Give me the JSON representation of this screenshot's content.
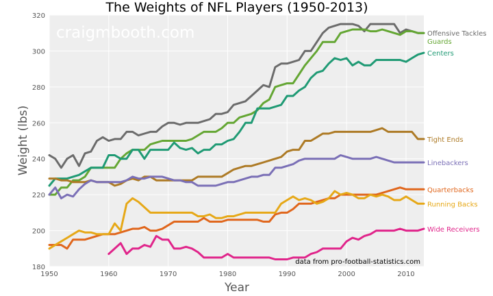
{
  "chart_data": {
    "type": "line",
    "title": "The Weights of NFL Players (1950-2013)",
    "xlabel": "Year",
    "ylabel": "Weight (lbs)",
    "xlim": [
      1950,
      2013
    ],
    "ylim": [
      180,
      320
    ],
    "xticks": [
      1950,
      1960,
      1970,
      1980,
      1990,
      2000,
      2010
    ],
    "yticks": [
      180,
      200,
      220,
      240,
      260,
      280,
      300,
      320
    ],
    "grid": true,
    "background": "#eeeeee",
    "watermark": "craigmbooth.com",
    "source_note": "data from pro-football-statistics.com",
    "series": [
      {
        "name": "Offensive Tackles",
        "color": "#6b6b6b",
        "x": [
          1950,
          1951,
          1952,
          1953,
          1954,
          1955,
          1956,
          1957,
          1958,
          1959,
          1960,
          1961,
          1962,
          1963,
          1964,
          1965,
          1966,
          1967,
          1968,
          1969,
          1970,
          1971,
          1972,
          1973,
          1974,
          1975,
          1976,
          1977,
          1978,
          1979,
          1980,
          1981,
          1982,
          1983,
          1984,
          1985,
          1986,
          1987,
          1988,
          1989,
          1990,
          1991,
          1992,
          1993,
          1994,
          1995,
          1996,
          1997,
          1998,
          1999,
          2000,
          2001,
          2002,
          2003,
          2004,
          2005,
          2006,
          2007,
          2008,
          2009,
          2010,
          2011,
          2012,
          2013
        ],
        "values": [
          242,
          240,
          235,
          240,
          242,
          236,
          243,
          244,
          250,
          252,
          250,
          251,
          251,
          255,
          255,
          253,
          254,
          255,
          255,
          258,
          260,
          260,
          259,
          260,
          260,
          260,
          261,
          262,
          265,
          265,
          266,
          270,
          271,
          272,
          275,
          278,
          281,
          280,
          291,
          293,
          293,
          294,
          295,
          300,
          300,
          305,
          310,
          313,
          314,
          315,
          315,
          315,
          314,
          311,
          315,
          315,
          315,
          315,
          315,
          310,
          312,
          311,
          310,
          310
        ]
      },
      {
        "name": "Guards",
        "color": "#64a633",
        "x": [
          1950,
          1951,
          1952,
          1953,
          1954,
          1955,
          1956,
          1957,
          1958,
          1959,
          1960,
          1961,
          1962,
          1963,
          1964,
          1965,
          1966,
          1967,
          1968,
          1969,
          1970,
          1971,
          1972,
          1973,
          1974,
          1975,
          1976,
          1977,
          1978,
          1979,
          1980,
          1981,
          1982,
          1983,
          1984,
          1985,
          1986,
          1987,
          1988,
          1989,
          1990,
          1991,
          1992,
          1993,
          1994,
          1995,
          1996,
          1997,
          1998,
          1999,
          2000,
          2001,
          2002,
          2003,
          2004,
          2005,
          2006,
          2007,
          2008,
          2009,
          2010,
          2011,
          2012,
          2013
        ],
        "values": [
          220,
          220,
          224,
          224,
          228,
          228,
          230,
          235,
          235,
          235,
          235,
          235,
          240,
          243,
          245,
          245,
          245,
          248,
          249,
          250,
          250,
          250,
          250,
          250,
          251,
          253,
          255,
          255,
          255,
          257,
          260,
          260,
          263,
          264,
          265,
          267,
          271,
          273,
          280,
          281,
          282,
          282,
          287,
          292,
          296,
          300,
          305,
          305,
          305,
          310,
          311,
          312,
          312,
          312,
          311,
          311,
          312,
          311,
          310,
          309,
          311,
          311,
          310,
          310
        ]
      },
      {
        "name": "Centers",
        "color": "#1f9a74",
        "x": [
          1950,
          1951,
          1952,
          1953,
          1954,
          1955,
          1956,
          1957,
          1958,
          1959,
          1960,
          1961,
          1962,
          1963,
          1964,
          1965,
          1966,
          1967,
          1968,
          1969,
          1970,
          1971,
          1972,
          1973,
          1974,
          1975,
          1976,
          1977,
          1978,
          1979,
          1980,
          1981,
          1982,
          1983,
          1984,
          1985,
          1986,
          1987,
          1988,
          1989,
          1990,
          1991,
          1992,
          1993,
          1994,
          1995,
          1996,
          1997,
          1998,
          1999,
          2000,
          2001,
          2002,
          2003,
          2004,
          2005,
          2006,
          2007,
          2008,
          2009,
          2010,
          2011,
          2012,
          2013
        ],
        "values": [
          225,
          229,
          229,
          229,
          230,
          231,
          233,
          235,
          235,
          235,
          242,
          242,
          240,
          240,
          245,
          245,
          240,
          245,
          245,
          245,
          245,
          249,
          246,
          245,
          246,
          243,
          245,
          245,
          248,
          248,
          250,
          251,
          255,
          260,
          260,
          268,
          268,
          268,
          269,
          270,
          275,
          275,
          278,
          280,
          285,
          288,
          289,
          293,
          296,
          295,
          296,
          292,
          294,
          292,
          292,
          295,
          295,
          295,
          295,
          295,
          294,
          296,
          298,
          299
        ]
      },
      {
        "name": "Tight Ends",
        "color": "#ad7a25",
        "x": [
          1950,
          1951,
          1952,
          1953,
          1954,
          1955,
          1956,
          1957,
          1958,
          1959,
          1960,
          1961,
          1962,
          1963,
          1964,
          1965,
          1966,
          1967,
          1968,
          1969,
          1970,
          1971,
          1972,
          1973,
          1974,
          1975,
          1976,
          1977,
          1978,
          1979,
          1980,
          1981,
          1982,
          1983,
          1984,
          1985,
          1986,
          1987,
          1988,
          1989,
          1990,
          1991,
          1992,
          1993,
          1994,
          1995,
          1996,
          1997,
          1998,
          1999,
          2000,
          2001,
          2002,
          2003,
          2004,
          2005,
          2006,
          2007,
          2008,
          2009,
          2010,
          2011,
          2012,
          2013
        ],
        "values": [
          229,
          229,
          228,
          228,
          227,
          227,
          227,
          228,
          227,
          227,
          227,
          225,
          226,
          228,
          229,
          228,
          230,
          230,
          228,
          228,
          228,
          228,
          228,
          228,
          228,
          230,
          230,
          230,
          230,
          230,
          232,
          234,
          235,
          236,
          236,
          237,
          238,
          239,
          240,
          241,
          244,
          245,
          245,
          250,
          250,
          252,
          254,
          254,
          255,
          255,
          255,
          255,
          255,
          255,
          255,
          256,
          257,
          255,
          255,
          255,
          255,
          255,
          251,
          251
        ]
      },
      {
        "name": "Linebackers",
        "color": "#7a6fb6",
        "x": [
          1950,
          1951,
          1952,
          1953,
          1954,
          1955,
          1956,
          1957,
          1958,
          1959,
          1960,
          1961,
          1962,
          1963,
          1964,
          1965,
          1966,
          1967,
          1968,
          1969,
          1970,
          1971,
          1972,
          1973,
          1974,
          1975,
          1976,
          1977,
          1978,
          1979,
          1980,
          1981,
          1982,
          1983,
          1984,
          1985,
          1986,
          1987,
          1988,
          1989,
          1990,
          1991,
          1992,
          1993,
          1994,
          1995,
          1996,
          1997,
          1998,
          1999,
          2000,
          2001,
          2002,
          2003,
          2004,
          2005,
          2006,
          2007,
          2008,
          2009,
          2010,
          2011,
          2012,
          2013
        ],
        "values": [
          220,
          224,
          218,
          220,
          219,
          223,
          226,
          228,
          227,
          227,
          227,
          227,
          227,
          228,
          230,
          229,
          229,
          230,
          230,
          230,
          229,
          228,
          228,
          227,
          227,
          225,
          225,
          225,
          225,
          226,
          227,
          227,
          228,
          229,
          230,
          230,
          231,
          231,
          235,
          235,
          236,
          237,
          239,
          240,
          240,
          240,
          240,
          240,
          240,
          242,
          241,
          240,
          240,
          240,
          240,
          241,
          240,
          239,
          238,
          238,
          238,
          238,
          238,
          238
        ]
      },
      {
        "name": "Quarterbacks",
        "color": "#e0661c",
        "x": [
          1950,
          1951,
          1952,
          1953,
          1954,
          1955,
          1956,
          1957,
          1958,
          1959,
          1960,
          1961,
          1962,
          1963,
          1964,
          1965,
          1966,
          1967,
          1968,
          1969,
          1970,
          1971,
          1972,
          1973,
          1974,
          1975,
          1976,
          1977,
          1978,
          1979,
          1980,
          1981,
          1982,
          1983,
          1984,
          1985,
          1986,
          1987,
          1988,
          1989,
          1990,
          1991,
          1992,
          1993,
          1994,
          1995,
          1996,
          1997,
          1998,
          1999,
          2000,
          2001,
          2002,
          2003,
          2004,
          2005,
          2006,
          2007,
          2008,
          2009,
          2010,
          2011,
          2012,
          2013
        ],
        "values": [
          192,
          192,
          192,
          190,
          195,
          195,
          195,
          196,
          197,
          198,
          198,
          198,
          199,
          200,
          201,
          201,
          202,
          200,
          200,
          201,
          203,
          205,
          205,
          205,
          205,
          205,
          207,
          205,
          205,
          205,
          206,
          206,
          206,
          206,
          206,
          206,
          205,
          205,
          209,
          210,
          210,
          212,
          215,
          215,
          215,
          216,
          217,
          218,
          218,
          220,
          220,
          220,
          220,
          220,
          220,
          220,
          221,
          222,
          223,
          224,
          223,
          223,
          223,
          223
        ]
      },
      {
        "name": "Running Backs",
        "color": "#e6a817",
        "x": [
          1950,
          1951,
          1952,
          1953,
          1954,
          1955,
          1956,
          1957,
          1958,
          1959,
          1960,
          1961,
          1962,
          1963,
          1964,
          1965,
          1966,
          1967,
          1968,
          1969,
          1970,
          1971,
          1972,
          1973,
          1974,
          1975,
          1976,
          1977,
          1978,
          1979,
          1980,
          1981,
          1982,
          1983,
          1984,
          1985,
          1986,
          1987,
          1988,
          1989,
          1990,
          1991,
          1992,
          1993,
          1994,
          1995,
          1996,
          1997,
          1998,
          1999,
          2000,
          2001,
          2002,
          2003,
          2004,
          2005,
          2006,
          2007,
          2008,
          2009,
          2010,
          2011,
          2012,
          2013
        ],
        "values": [
          190,
          192,
          194,
          196,
          198,
          200,
          199,
          199,
          198,
          198,
          198,
          204,
          200,
          215,
          218,
          216,
          213,
          210,
          210,
          210,
          210,
          210,
          210,
          210,
          210,
          208,
          208,
          209,
          207,
          207,
          208,
          208,
          209,
          210,
          210,
          210,
          210,
          210,
          210,
          215,
          217,
          219,
          217,
          218,
          217,
          215,
          216,
          218,
          222,
          220,
          221,
          220,
          218,
          218,
          220,
          219,
          220,
          219,
          217,
          217,
          219,
          217,
          215,
          215
        ]
      },
      {
        "name": "Wide Receivers",
        "color": "#e0248a",
        "x": [
          1960,
          1961,
          1962,
          1963,
          1964,
          1965,
          1966,
          1967,
          1968,
          1969,
          1970,
          1971,
          1972,
          1973,
          1974,
          1975,
          1976,
          1977,
          1978,
          1979,
          1980,
          1981,
          1982,
          1983,
          1984,
          1985,
          1986,
          1987,
          1988,
          1989,
          1990,
          1991,
          1992,
          1993,
          1994,
          1995,
          1996,
          1997,
          1998,
          1999,
          2000,
          2001,
          2002,
          2003,
          2004,
          2005,
          2006,
          2007,
          2008,
          2009,
          2010,
          2011,
          2012,
          2013
        ],
        "values": [
          187,
          190,
          193,
          187,
          190,
          190,
          192,
          191,
          197,
          195,
          195,
          190,
          190,
          191,
          190,
          188,
          185,
          185,
          185,
          185,
          187,
          185,
          185,
          185,
          185,
          185,
          185,
          185,
          184,
          184,
          184,
          185,
          185,
          185,
          187,
          188,
          190,
          190,
          190,
          190,
          194,
          196,
          195,
          197,
          198,
          200,
          200,
          200,
          200,
          201,
          200,
          200,
          200,
          201
        ]
      }
    ]
  }
}
